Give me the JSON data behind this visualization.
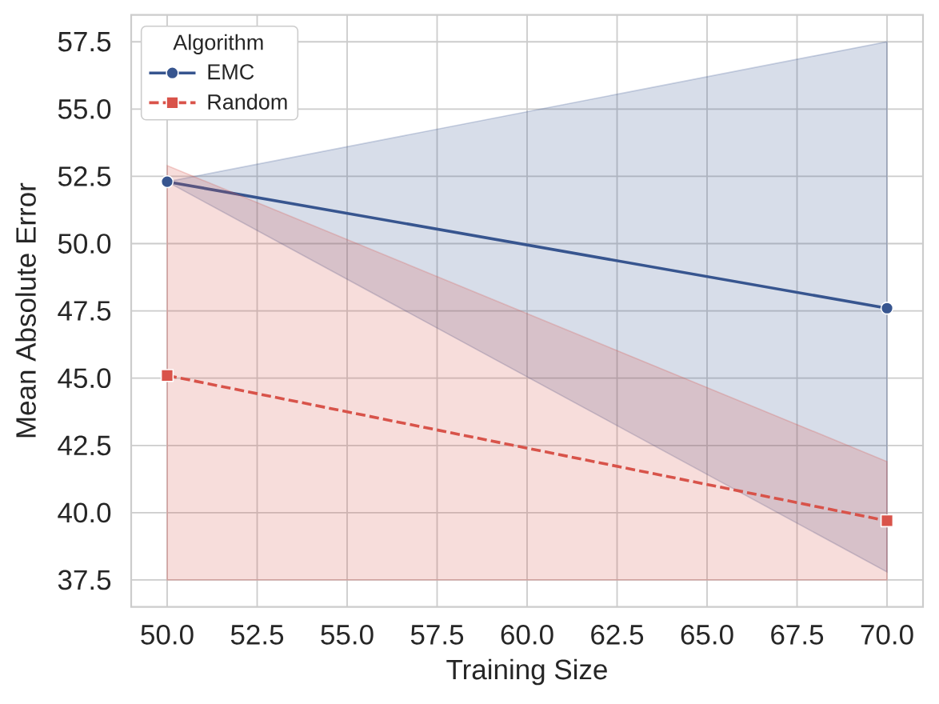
{
  "chart_data": {
    "type": "line",
    "xlabel": "Training Size",
    "ylabel": "Mean Absolute Error",
    "legend_title": "Algorithm",
    "x": [
      50,
      70
    ],
    "series": [
      {
        "name": "EMC",
        "color": "#37558f",
        "values": [
          52.3,
          47.6
        ],
        "lower": [
          52.3,
          37.8
        ],
        "upper": [
          52.3,
          57.5
        ],
        "marker": "circle",
        "line_style": "solid"
      },
      {
        "name": "Random",
        "color": "#d9534a",
        "values": [
          45.1,
          39.7
        ],
        "lower": [
          37.5,
          37.5
        ],
        "upper": [
          52.9,
          41.9
        ],
        "marker": "square",
        "line_style": "dashed"
      }
    ],
    "xlim": [
      49,
      71
    ],
    "ylim": [
      36.5,
      58.5
    ],
    "xticks": [
      {
        "value": 50,
        "label": "50.0"
      },
      52.5,
      {
        "value": 55,
        "label": "55.0"
      },
      57.5,
      {
        "value": 60,
        "label": "60.0"
      },
      62.5,
      {
        "value": 65,
        "label": "65.0"
      },
      67.5,
      {
        "value": 70,
        "label": "70.0"
      }
    ],
    "yticks": [
      37.5,
      {
        "value": 40,
        "label": "40.0"
      },
      42.5,
      {
        "value": 45,
        "label": "45.0"
      },
      47.5,
      {
        "value": 50,
        "label": "50.0"
      },
      52.5,
      {
        "value": 55,
        "label": "55.0"
      },
      57.5
    ],
    "grid": true,
    "legend": "top left"
  }
}
